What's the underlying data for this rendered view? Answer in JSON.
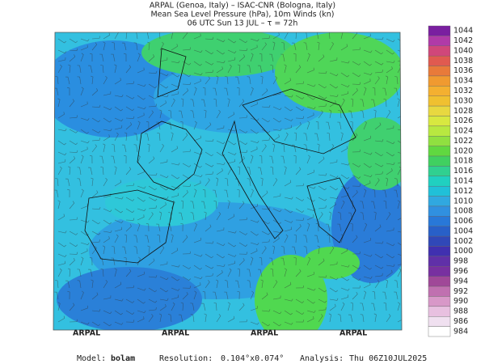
{
  "header": {
    "line1": "ARPAL (Genoa, Italy)  –  ISAC-CNR (Bologna, Italy)",
    "line2": "Mean Sea Level Pressure (hPa), 10m Winds (kn)",
    "line3": "06 UTC Sun 13 JUL  –  τ = 72h"
  },
  "watermark": "ARPAL",
  "colorbar": [
    {
      "label": 1044,
      "color": "#7a1fa0"
    },
    {
      "label": 1042,
      "color": "#b03aa8"
    },
    {
      "label": 1040,
      "color": "#d0477a"
    },
    {
      "label": 1038,
      "color": "#e05a50"
    },
    {
      "label": 1036,
      "color": "#e87a3a"
    },
    {
      "label": 1034,
      "color": "#f09a30"
    },
    {
      "label": 1032,
      "color": "#f4b030"
    },
    {
      "label": 1030,
      "color": "#f0c030"
    },
    {
      "label": 1028,
      "color": "#e8d840"
    },
    {
      "label": 1026,
      "color": "#d8e840"
    },
    {
      "label": 1024,
      "color": "#b8e840"
    },
    {
      "label": 1022,
      "color": "#90e040"
    },
    {
      "label": 1020,
      "color": "#60d840"
    },
    {
      "label": 1018,
      "color": "#40d060"
    },
    {
      "label": 1016,
      "color": "#30d090"
    },
    {
      "label": 1014,
      "color": "#20d0c0"
    },
    {
      "label": 1012,
      "color": "#20c0d8"
    },
    {
      "label": 1010,
      "color": "#30a8e0"
    },
    {
      "label": 1008,
      "color": "#3090e0"
    },
    {
      "label": 1006,
      "color": "#2878d8"
    },
    {
      "label": 1004,
      "color": "#2860c8"
    },
    {
      "label": 1002,
      "color": "#3048b8"
    },
    {
      "label": 1000,
      "color": "#4030b0"
    },
    {
      "label": 998,
      "color": "#6030a8"
    },
    {
      "label": 996,
      "color": "#7830a0"
    },
    {
      "label": 994,
      "color": "#a04898"
    },
    {
      "label": 992,
      "color": "#c070b0"
    },
    {
      "label": 990,
      "color": "#d898c8"
    },
    {
      "label": 988,
      "color": "#e8c0e0"
    },
    {
      "label": 986,
      "color": "#f0e0f0"
    },
    {
      "label": 984,
      "color": "#ffffff"
    }
  ],
  "footer": {
    "model_label": "Model:",
    "model": "bolam",
    "resolution_label": "Resolution:",
    "resolution": "0.104°x0.074°",
    "analysis_label": "Analysis:",
    "analysis": "Thu 06Z10JUL2025"
  }
}
